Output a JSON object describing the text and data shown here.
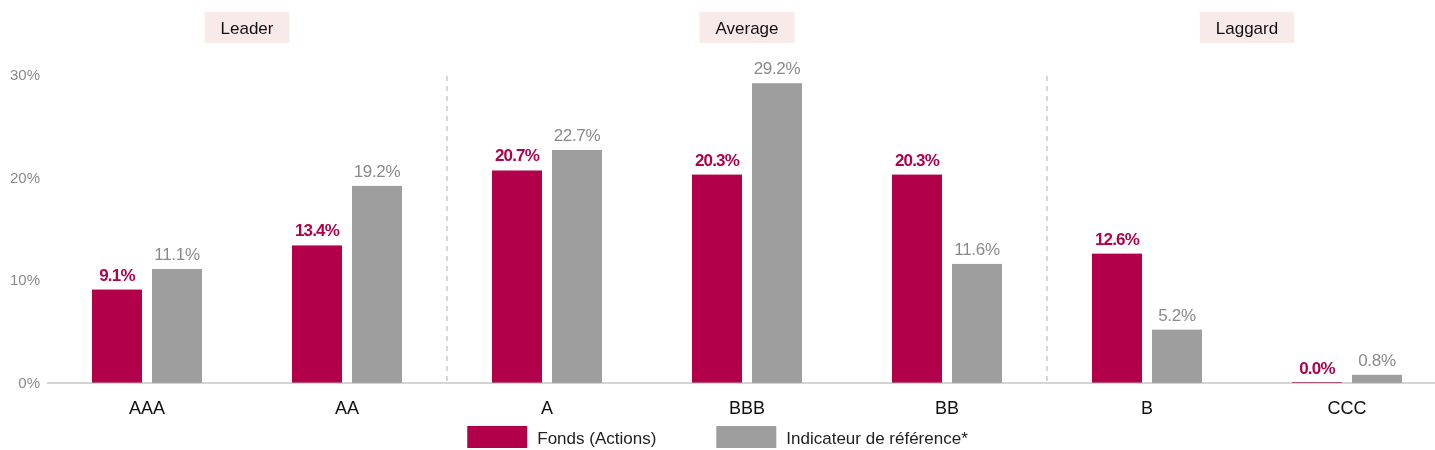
{
  "chart_data": {
    "type": "bar",
    "categories": [
      "AAA",
      "AA",
      "A",
      "BBB",
      "BB",
      "B",
      "CCC"
    ],
    "series": [
      {
        "name": "Fonds (Actions)",
        "color": "#b3004a",
        "values": [
          9.1,
          13.4,
          20.7,
          20.3,
          20.3,
          12.6,
          0.0
        ],
        "value_labels": [
          "9.1%",
          "13.4%",
          "20.7%",
          "20.3%",
          "20.3%",
          "12.6%",
          "0.0%"
        ]
      },
      {
        "name": "Indicateur de référence*",
        "color": "#9e9e9e",
        "values": [
          11.1,
          19.2,
          22.7,
          29.2,
          11.6,
          5.2,
          0.8
        ],
        "value_labels": [
          "11.1%",
          "19.2%",
          "22.7%",
          "29.2%",
          "11.6%",
          "5.2%",
          "0.8%"
        ]
      }
    ],
    "ylim": [
      0,
      30
    ],
    "yticks": [
      {
        "value": 0,
        "label": "0%"
      },
      {
        "value": 10,
        "label": "10%"
      },
      {
        "value": 20,
        "label": "20%"
      },
      {
        "value": 30,
        "label": "30%"
      }
    ],
    "annotations": [
      "Leader",
      "Average",
      "Laggard"
    ],
    "legend": "bottom"
  }
}
